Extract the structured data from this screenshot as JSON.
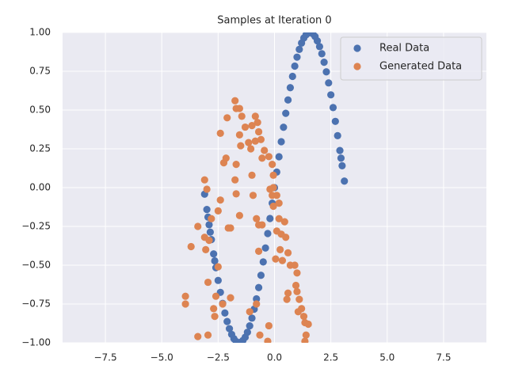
{
  "chart_data": {
    "type": "scatter",
    "title": "Samples at Iteration 0",
    "xlim": [
      -9.4,
      9.4
    ],
    "ylim": [
      -1,
      1
    ],
    "xticks": [
      {
        "value": -7.5,
        "label": "−7.5"
      },
      {
        "value": -5,
        "label": "−5.0"
      },
      {
        "value": -2.5,
        "label": "−2.5"
      },
      {
        "value": 0,
        "label": "0.0"
      },
      {
        "value": 2.5,
        "label": "2.5"
      },
      {
        "value": 5,
        "label": "5.0"
      },
      {
        "value": 7.5,
        "label": "7.5"
      }
    ],
    "yticks": [
      {
        "value": -1,
        "label": "−1.00"
      },
      {
        "value": -0.75,
        "label": "−0.75"
      },
      {
        "value": -0.5,
        "label": "−0.50"
      },
      {
        "value": -0.25,
        "label": "−0.25"
      },
      {
        "value": 0,
        "label": "0.00"
      },
      {
        "value": 0.25,
        "label": "0.25"
      },
      {
        "value": 0.5,
        "label": "0.50"
      },
      {
        "value": 0.75,
        "label": "0.75"
      },
      {
        "value": 1,
        "label": "1.00"
      }
    ],
    "grid": true,
    "legend": "upper right",
    "series": [
      {
        "name": "Real Data",
        "color": "#4c72b0",
        "x": [
          -3.1,
          -3.0,
          -2.95,
          -2.9,
          -2.85,
          -2.8,
          -2.7,
          -2.65,
          -2.6,
          -2.5,
          -2.4,
          -2.3,
          -2.2,
          -2.1,
          -2.0,
          -1.9,
          -1.8,
          -1.7,
          -1.6,
          -1.5,
          -1.4,
          -1.3,
          -1.2,
          -1.1,
          -1.0,
          -0.9,
          -0.8,
          -0.7,
          -0.6,
          -0.5,
          -0.4,
          -0.3,
          -0.2,
          -0.1,
          0.0,
          0.1,
          0.2,
          0.3,
          0.4,
          0.5,
          0.6,
          0.7,
          0.8,
          0.9,
          1.0,
          1.1,
          1.2,
          1.3,
          1.4,
          1.5,
          1.6,
          1.7,
          1.8,
          1.9,
          2.0,
          2.1,
          2.2,
          2.3,
          2.4,
          2.5,
          2.6,
          2.7,
          2.8,
          2.9,
          2.95,
          3.0,
          3.1
        ],
        "values": [
          -0.042,
          -0.141,
          -0.19,
          -0.239,
          -0.287,
          -0.335,
          -0.427,
          -0.472,
          -0.516,
          -0.598,
          -0.675,
          -0.746,
          -0.808,
          -0.863,
          -0.909,
          -0.946,
          -0.974,
          -0.992,
          -1.0,
          -0.997,
          -0.985,
          -0.964,
          -0.932,
          -0.891,
          -0.841,
          -0.783,
          -0.717,
          -0.644,
          -0.565,
          -0.479,
          -0.389,
          -0.296,
          -0.199,
          -0.1,
          0.0,
          0.1,
          0.199,
          0.296,
          0.389,
          0.479,
          0.565,
          0.644,
          0.717,
          0.783,
          0.841,
          0.891,
          0.932,
          0.964,
          0.985,
          0.997,
          1.0,
          0.992,
          0.974,
          0.946,
          0.909,
          0.863,
          0.808,
          0.746,
          0.675,
          0.598,
          0.516,
          0.427,
          0.335,
          0.239,
          0.19,
          0.141,
          0.042
        ]
      },
      {
        "name": "Generated Data",
        "color": "#dd8452",
        "x": [
          -1.75,
          -1.7,
          -1.55,
          -2.1,
          -1.45,
          -1.3,
          -0.85,
          -0.75,
          -1.0,
          -0.7,
          -1.55,
          -2.4,
          -1.5,
          -1.15,
          -1.05,
          -0.85,
          -0.6,
          -0.45,
          -0.55,
          -2.15,
          -2.25,
          -1.7,
          -1.0,
          -0.25,
          -0.1,
          -0.05,
          -3.1,
          -1.75,
          -0.05,
          -0.2,
          -3.0,
          -1.7,
          -0.95,
          -0.1,
          0.1,
          -2.4,
          -2.5,
          -0.05,
          0.2,
          -1.55,
          -0.8,
          0.2,
          0.45,
          -2.8,
          -0.55,
          -0.7,
          -3.4,
          -1.95,
          -2.05,
          0.1,
          0.3,
          -3.1,
          -2.9,
          0.5,
          -3.7,
          -3.05,
          -0.7,
          0.25,
          0.6,
          0.05,
          0.35,
          0.7,
          0.9,
          -2.5,
          1.0,
          -2.95,
          0.95,
          0.6,
          1.0,
          -3.95,
          -2.6,
          -1.95,
          1.1,
          -3.95,
          -2.3,
          -0.8,
          0.55,
          -2.7,
          1.2,
          -2.65,
          1.3,
          -1.1,
          1.05,
          1.35,
          1.5,
          -0.25,
          -0.65,
          1.4,
          -2.95,
          -3.4,
          -0.3,
          1.35
        ],
        "values": [
          0.56,
          0.51,
          0.51,
          0.45,
          0.46,
          0.39,
          0.46,
          0.42,
          0.4,
          0.36,
          0.34,
          0.35,
          0.27,
          0.29,
          0.25,
          0.3,
          0.31,
          0.24,
          0.19,
          0.19,
          0.16,
          0.15,
          0.08,
          0.2,
          0.15,
          0.08,
          0.05,
          0.05,
          0.0,
          -0.01,
          -0.01,
          -0.04,
          -0.05,
          -0.05,
          -0.05,
          -0.08,
          -0.15,
          -0.12,
          -0.1,
          -0.18,
          -0.2,
          -0.2,
          -0.22,
          -0.2,
          -0.24,
          -0.24,
          -0.25,
          -0.26,
          -0.26,
          -0.28,
          -0.3,
          -0.32,
          -0.34,
          -0.32,
          -0.38,
          -0.4,
          -0.41,
          -0.4,
          -0.42,
          -0.46,
          -0.47,
          -0.5,
          -0.5,
          -0.51,
          -0.55,
          -0.61,
          -0.63,
          -0.68,
          -0.67,
          -0.7,
          -0.7,
          -0.71,
          -0.72,
          -0.75,
          -0.75,
          -0.75,
          -0.72,
          -0.78,
          -0.78,
          -0.83,
          -0.83,
          -0.8,
          -0.8,
          -0.87,
          -0.88,
          -0.89,
          -0.95,
          -0.95,
          -0.95,
          -0.96,
          -0.99,
          -0.99
        ]
      }
    ]
  }
}
